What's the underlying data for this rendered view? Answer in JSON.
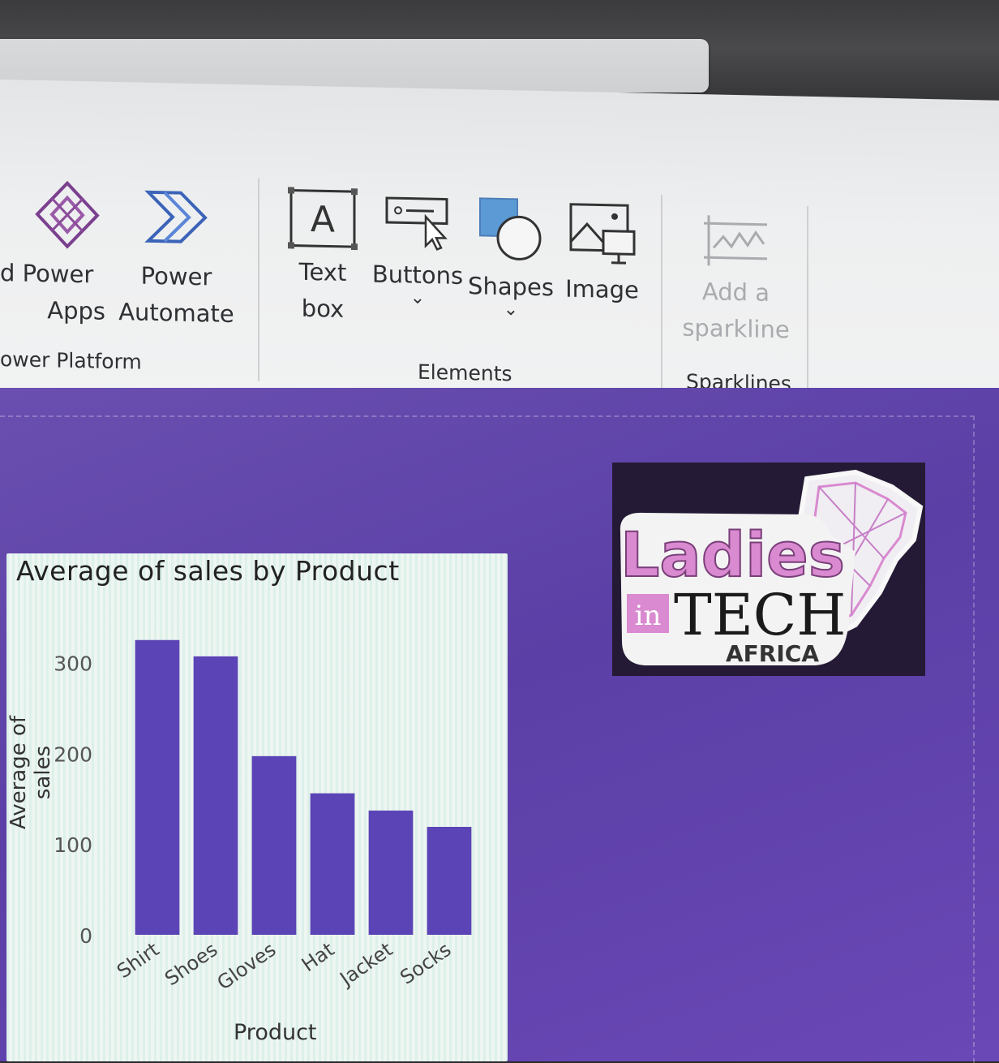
{
  "ribbon": {
    "power_platform": {
      "items": [
        {
          "line1": "d Power",
          "line2": "Apps",
          "icon": "power-apps-icon"
        },
        {
          "line1": "Power",
          "line2": "Automate",
          "icon": "power-automate-icon"
        }
      ],
      "label": "ower Platform"
    },
    "elements": {
      "items": [
        {
          "line1": "Text",
          "line2": "box",
          "icon": "text-box-icon"
        },
        {
          "line1": "Buttons",
          "icon": "buttons-icon"
        },
        {
          "line1": "Shapes",
          "icon": "shapes-icon"
        },
        {
          "line1": "Image",
          "icon": "image-icon"
        }
      ],
      "label": "Elements"
    },
    "sparklines": {
      "items": [
        {
          "line1": "Add a",
          "line2": "sparkline",
          "icon": "sparkline-icon",
          "disabled": true
        }
      ],
      "label": "Sparklines"
    }
  },
  "logo": {
    "text_ladies": "Ladies",
    "text_in": "in",
    "text_tech": "TECH",
    "text_africa": "AFRICA",
    "colors": {
      "pink": "#d57ac8",
      "white": "#f3f3f3",
      "dark": "#241a35"
    }
  },
  "chart_data": {
    "type": "bar",
    "title": "Average of sales by Product",
    "xlabel": "Product",
    "ylabel": "Average of sales",
    "categories": [
      "Shirt",
      "Shoes",
      "Gloves",
      "Hat",
      "Jacket",
      "Socks"
    ],
    "values": [
      325,
      307,
      197,
      156,
      137,
      119
    ],
    "ylim": [
      0,
      340
    ],
    "yticks": [
      0,
      100,
      200,
      300
    ],
    "bar_color": "#5b44b5",
    "grid": false
  }
}
